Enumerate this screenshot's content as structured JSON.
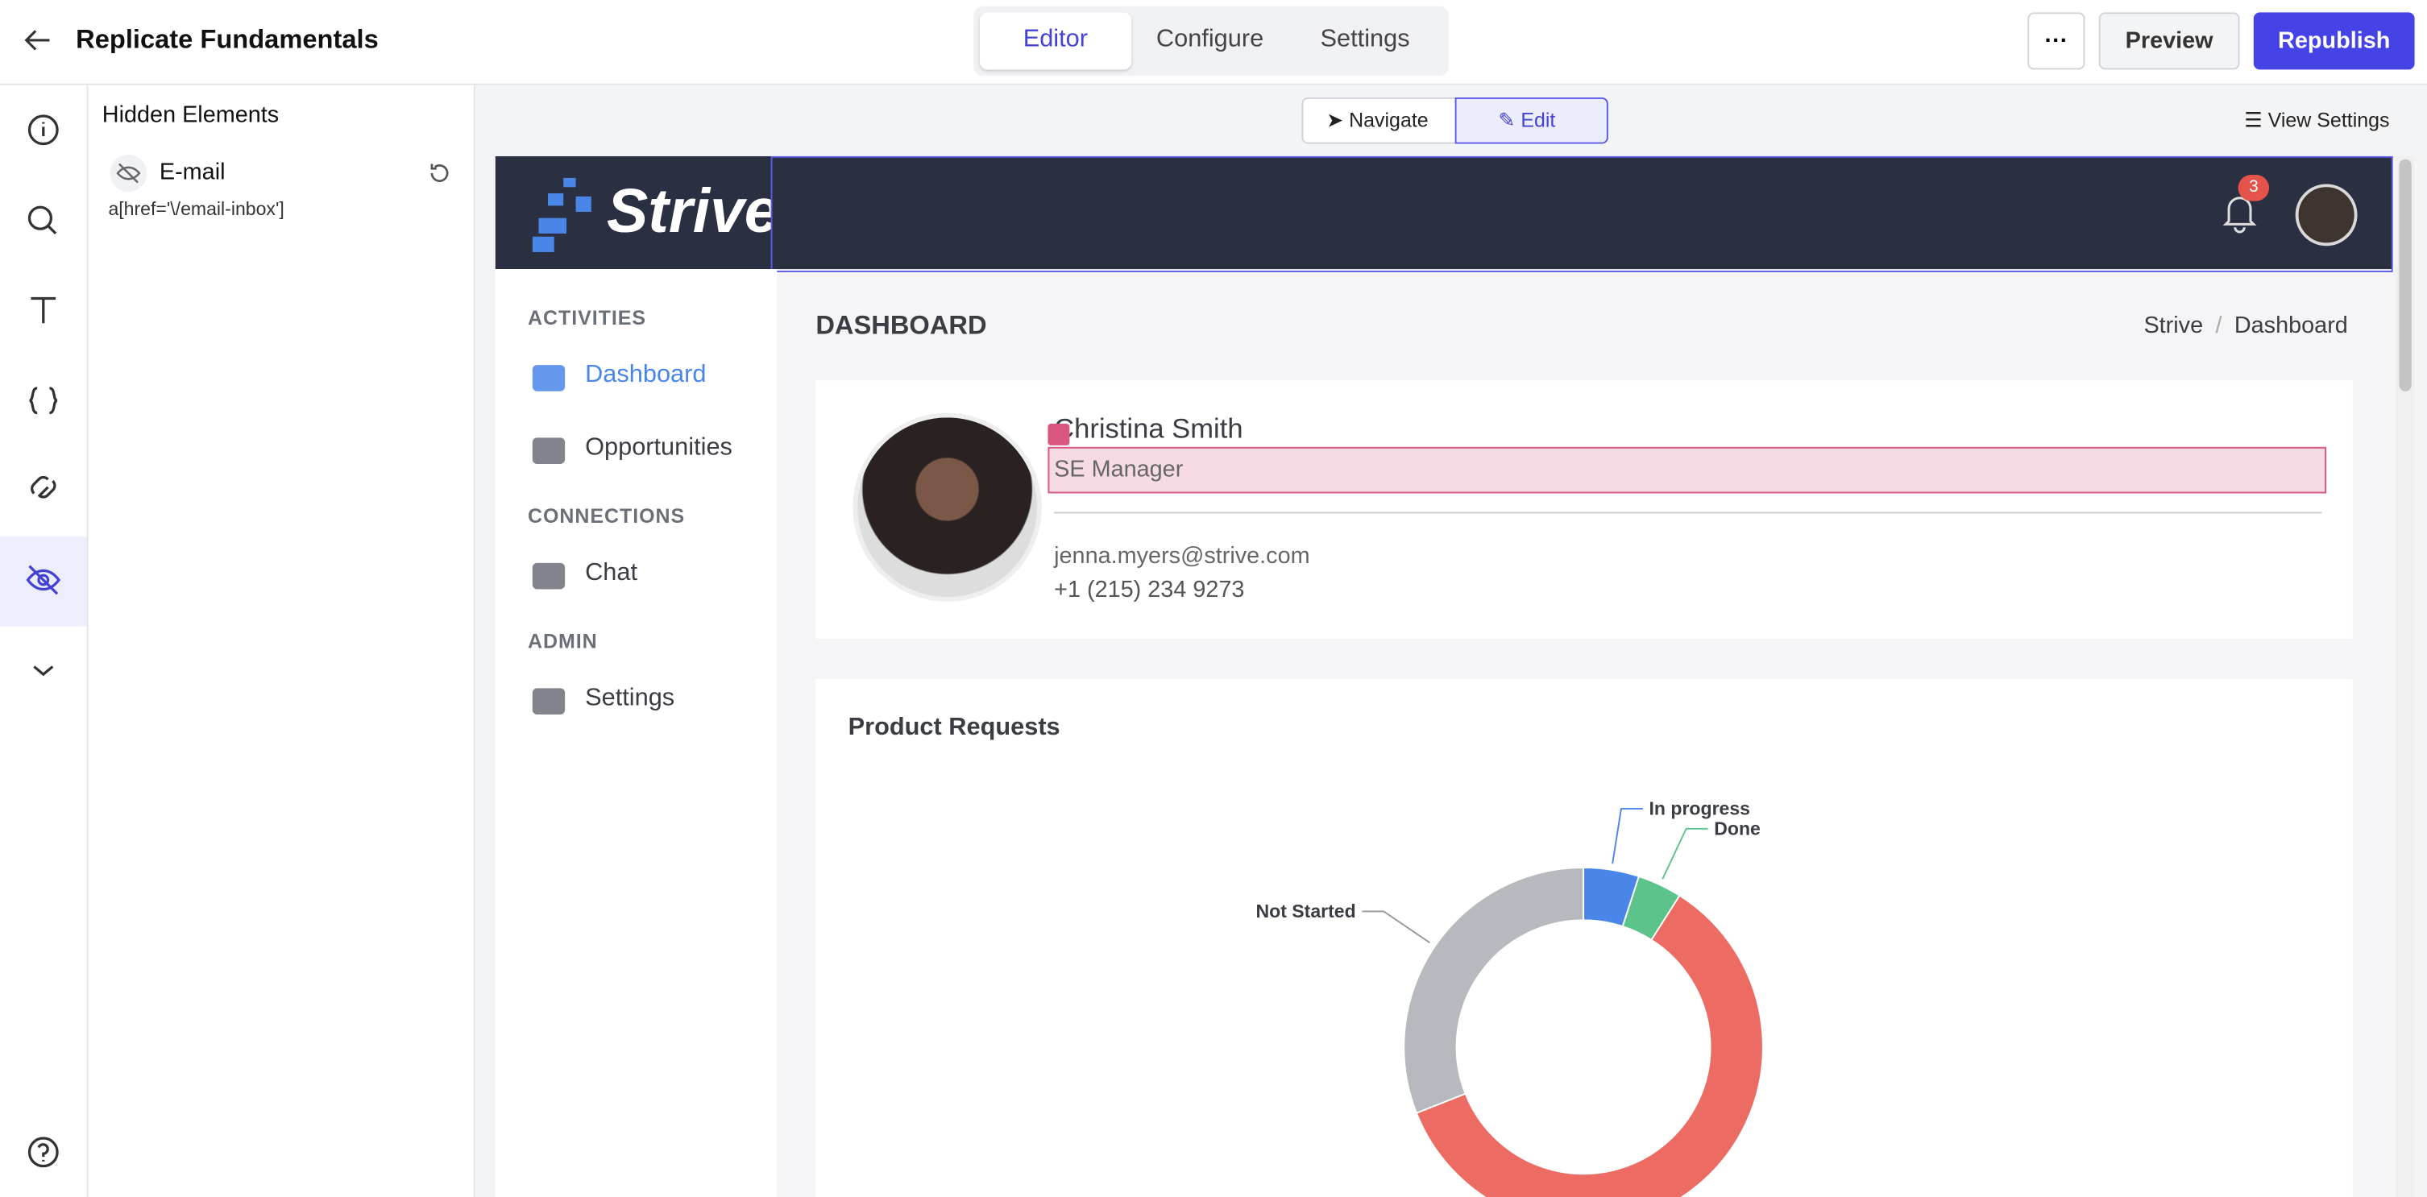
{
  "header": {
    "title": "Replicate Fundamentals",
    "tabs": [
      "Editor",
      "Configure",
      "Settings"
    ],
    "buttons": [
      "Preview",
      "Republish"
    ]
  },
  "panel": {
    "title": "Hidden Elements",
    "item": {
      "label": "E-mail",
      "selector": "a[href='\\/email-inbox']"
    }
  },
  "toolbar": {
    "modes": [
      "Navigate",
      "Edit"
    ],
    "view_settings": "View Settings"
  },
  "app": {
    "logo": "Strive",
    "notifications": 3,
    "nav": [
      {
        "section": "ACTIVITIES",
        "items": [
          "Dashboard",
          "Opportunities"
        ]
      },
      {
        "section": "CONNECTIONS",
        "items": [
          "Chat"
        ]
      },
      {
        "section": "ADMIN",
        "items": [
          "Settings"
        ]
      }
    ],
    "page_title": "DASHBOARD",
    "breadcrumb": [
      "Strive",
      "Dashboard"
    ],
    "profile": {
      "name": "Christina Smith",
      "role": "SE Manager",
      "email": "jenna.myers@strive.com",
      "phone": "+1 (215) 234 9273"
    }
  },
  "chart_data": {
    "type": "pie",
    "title": "Product Requests",
    "categories": [
      "In progress",
      "Done",
      null,
      "Not Started"
    ],
    "values": [
      5,
      4,
      60,
      31
    ],
    "colors": [
      "#4a86e8",
      "#5cc48a",
      "#ec6b63",
      "#b6b9bd"
    ],
    "donut": true
  }
}
